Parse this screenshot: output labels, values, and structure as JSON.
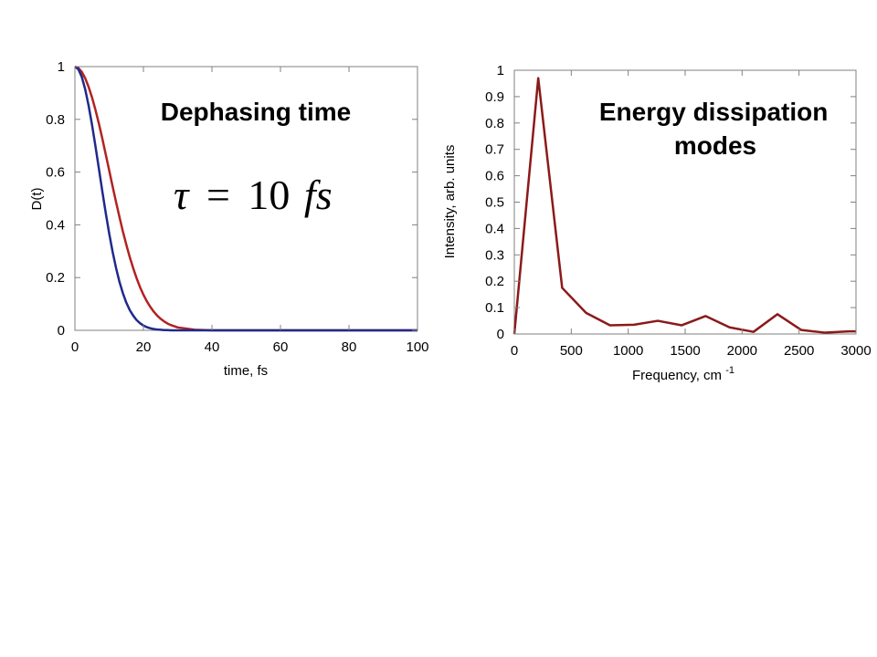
{
  "chart_data": [
    {
      "type": "line",
      "xlabel": "time, fs",
      "ylabel": "D(t)",
      "xlim": [
        0,
        100
      ],
      "ylim": [
        0,
        1
      ],
      "xticks": [
        "0",
        "20",
        "40",
        "60",
        "80",
        "100"
      ],
      "yticks": [
        "0",
        "0.2",
        "0.4",
        "0.6",
        "0.8",
        "1"
      ],
      "annotation": "Dephasing time",
      "formula": {
        "symbol": "τ",
        "equals": "=",
        "value": "10",
        "unit": "fs"
      },
      "grid": false,
      "series": [
        {
          "color": "#b22222",
          "x": [
            0,
            1,
            2,
            3,
            4,
            5,
            6,
            7,
            8,
            9,
            10,
            11,
            12,
            13,
            14,
            15,
            16,
            17,
            18,
            19,
            20,
            21,
            22,
            23,
            24,
            25,
            26,
            27,
            28,
            30,
            35,
            40,
            50,
            60,
            70,
            80,
            90,
            100
          ],
          "y": [
            1.0,
            0.995,
            0.98,
            0.956,
            0.923,
            0.883,
            0.836,
            0.784,
            0.727,
            0.667,
            0.607,
            0.546,
            0.487,
            0.43,
            0.375,
            0.325,
            0.278,
            0.236,
            0.198,
            0.164,
            0.135,
            0.11,
            0.089,
            0.071,
            0.056,
            0.044,
            0.034,
            0.026,
            0.02,
            0.011,
            0.002,
            0.0,
            0.0,
            0.0,
            0.0,
            0.0,
            0.0,
            0.0
          ]
        },
        {
          "color": "#1f2a8a",
          "x": [
            0,
            1,
            2,
            3,
            4,
            5,
            6,
            7,
            8,
            9,
            10,
            11,
            12,
            13,
            14,
            15,
            16,
            17,
            18,
            19,
            20,
            21,
            22,
            23,
            24,
            25,
            26,
            27,
            28,
            30,
            35,
            40,
            50,
            60,
            70,
            80,
            90,
            100
          ],
          "y": [
            1.0,
            0.99,
            0.961,
            0.914,
            0.852,
            0.779,
            0.698,
            0.613,
            0.527,
            0.445,
            0.368,
            0.298,
            0.237,
            0.184,
            0.141,
            0.105,
            0.077,
            0.056,
            0.039,
            0.027,
            0.018,
            0.012,
            0.008,
            0.005,
            0.003,
            0.002,
            0.001,
            0.001,
            0.0,
            0.0,
            0.0,
            0.0,
            0.0,
            0.0,
            0.0,
            0.0,
            0.0,
            0.0
          ]
        }
      ]
    },
    {
      "type": "line",
      "xlabel": "Frequency, cm",
      "xlabel_superscript": "-1",
      "ylabel": "Intensity, arb. units",
      "xlim": [
        0,
        3000
      ],
      "ylim": [
        0,
        1
      ],
      "xticks": [
        "0",
        "500",
        "1000",
        "1500",
        "2000",
        "2500",
        "3000"
      ],
      "yticks": [
        "0",
        "0.1",
        "0.2",
        "0.3",
        "0.4",
        "0.5",
        "0.6",
        "0.7",
        "0.8",
        "0.9",
        "1"
      ],
      "annotation": [
        "Energy dissipation",
        "modes"
      ],
      "grid": false,
      "series": [
        {
          "color": "#8b1a1a",
          "x": [
            0,
            210,
            420,
            630,
            840,
            1050,
            1260,
            1470,
            1680,
            1890,
            2100,
            2310,
            2520,
            2730,
            2940,
            3000
          ],
          "y": [
            0.0,
            0.97,
            0.175,
            0.08,
            0.033,
            0.035,
            0.05,
            0.033,
            0.068,
            0.025,
            0.008,
            0.075,
            0.015,
            0.005,
            0.01,
            0.01
          ]
        }
      ]
    }
  ]
}
